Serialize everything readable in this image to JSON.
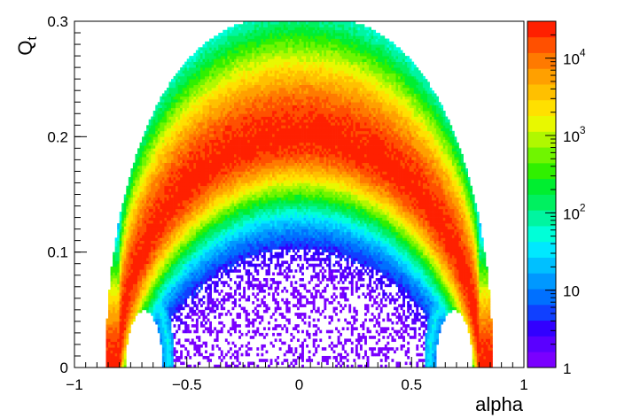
{
  "chart_data": {
    "type": "heatmap",
    "title": "",
    "xlabel": "alpha",
    "ylabel": "Q",
    "ylabel_subscript": "t",
    "xlim": [
      -1,
      1
    ],
    "ylim": [
      0,
      0.3
    ],
    "x_ticks": [
      -1,
      -0.5,
      0,
      0.5,
      1
    ],
    "x_tick_labels": [
      "−1",
      "−0.5",
      "0",
      "0.5",
      "1"
    ],
    "y_ticks": [
      0,
      0.1,
      0.2,
      0.3
    ],
    "y_tick_labels": [
      "0",
      "0.1",
      "0.2",
      "0.3"
    ],
    "z_scale": "log",
    "z_range": [
      1,
      30000
    ],
    "colorbar_ticks": [
      {
        "value": 1,
        "base": "1",
        "exp": ""
      },
      {
        "value": 10,
        "base": "10",
        "exp": ""
      },
      {
        "value": 100,
        "base": "10",
        "exp": "2"
      },
      {
        "value": 1000,
        "base": "10",
        "exp": "3"
      },
      {
        "value": 10000,
        "base": "10",
        "exp": "4"
      }
    ],
    "colormap": [
      "#7a00ff",
      "#5a00ff",
      "#3200ff",
      "#1040ff",
      "#0070ff",
      "#0098ff",
      "#00c0ff",
      "#00e8ff",
      "#00ffd8",
      "#00f5a0",
      "#00f060",
      "#00ee30",
      "#30f000",
      "#70f500",
      "#b0f800",
      "#e8f800",
      "#ffe000",
      "#ffc000",
      "#ffa000",
      "#ff7a00",
      "#ff5000",
      "#ff2000"
    ],
    "grid": false,
    "legend": "none"
  }
}
